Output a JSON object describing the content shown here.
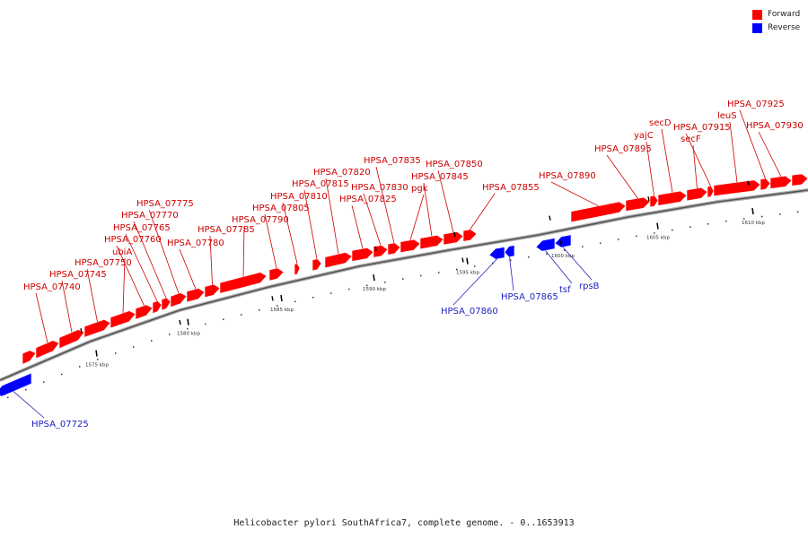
{
  "caption": "Helicobacter pylori SouthAfrica7, complete genome. - 0..1653913",
  "legend": {
    "forward_label": "Forward",
    "forward_color": "#ff0000",
    "reverse_label": "Reverse",
    "reverse_color": "#0000ff"
  },
  "label_colors": {
    "forward": "#cc0000",
    "reverse": "#1f1fbf"
  },
  "scale_labels": [
    "1575 kbp",
    "1580 kbp",
    "1585 kbp",
    "1590 kbp",
    "1595 kbp",
    "1600 kbp",
    "1605 kbp",
    "1610 kbp"
  ],
  "genes": [
    {
      "name": "HPSA_07725",
      "strand": "reverse"
    },
    {
      "name": "",
      "strand": "forward"
    },
    {
      "name": "HPSA_07740",
      "strand": "forward"
    },
    {
      "name": "HPSA_07745",
      "strand": "forward"
    },
    {
      "name": "HPSA_07750",
      "strand": "forward"
    },
    {
      "name": "ubiA",
      "strand": "forward"
    },
    {
      "name": "HPSA_07760",
      "strand": "forward"
    },
    {
      "name": "HPSA_07765",
      "strand": "forward"
    },
    {
      "name": "HPSA_07770",
      "strand": "forward"
    },
    {
      "name": "HPSA_07775",
      "strand": "forward"
    },
    {
      "name": "HPSA_07780",
      "strand": "forward"
    },
    {
      "name": "HPSA_07785",
      "strand": "forward"
    },
    {
      "name": "HPSA_07790",
      "strand": "forward"
    },
    {
      "name": "HPSA_07805",
      "strand": "forward"
    },
    {
      "name": "HPSA_07810",
      "strand": "forward"
    },
    {
      "name": "HPSA_07815",
      "strand": "forward"
    },
    {
      "name": "HPSA_07820",
      "strand": "forward"
    },
    {
      "name": "HPSA_07825",
      "strand": "forward"
    },
    {
      "name": "HPSA_07830",
      "strand": "forward"
    },
    {
      "name": "HPSA_07835",
      "strand": "forward"
    },
    {
      "name": "pgk",
      "strand": "forward"
    },
    {
      "name": "HPSA_07845",
      "strand": "forward"
    },
    {
      "name": "HPSA_07850",
      "strand": "forward"
    },
    {
      "name": "HPSA_07855",
      "strand": "forward"
    },
    {
      "name": "HPSA_07860",
      "strand": "reverse"
    },
    {
      "name": "HPSA_07865",
      "strand": "reverse"
    },
    {
      "name": "tsf",
      "strand": "reverse"
    },
    {
      "name": "rpsB",
      "strand": "reverse"
    },
    {
      "name": "HPSA_07890",
      "strand": "forward"
    },
    {
      "name": "HPSA_07895",
      "strand": "forward"
    },
    {
      "name": "yajC",
      "strand": "forward"
    },
    {
      "name": "secD",
      "strand": "forward"
    },
    {
      "name": "secF",
      "strand": "forward"
    },
    {
      "name": "HPSA_07915",
      "strand": "forward"
    },
    {
      "name": "leuS",
      "strand": "forward"
    },
    {
      "name": "HPSA_07925",
      "strand": "forward"
    },
    {
      "name": "HPSA_07930",
      "strand": "forward"
    }
  ]
}
